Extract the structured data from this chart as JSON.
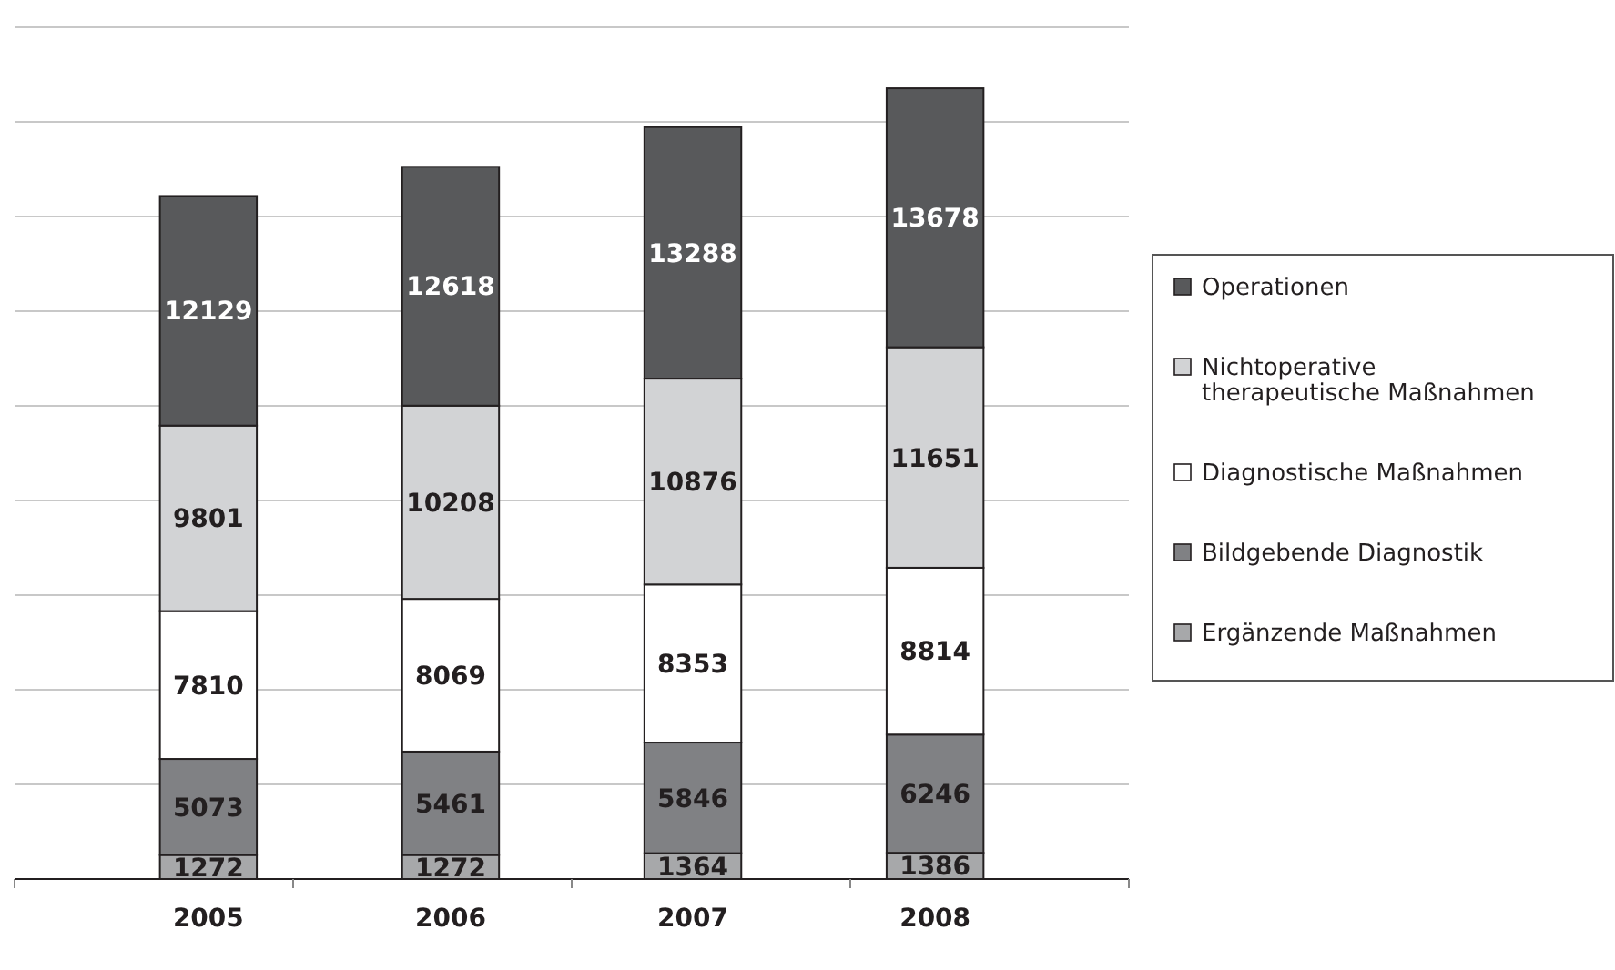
{
  "chart_data": {
    "type": "bar",
    "stacked": true,
    "categories": [
      "2005",
      "2006",
      "2007",
      "2008"
    ],
    "series": [
      {
        "name": "Ergänzende Maßnahmen",
        "color": "#a7a8aa",
        "values": [
          1272,
          1272,
          1364,
          1386
        ]
      },
      {
        "name": "Bildgebende Diagnostik",
        "color": "#808184",
        "values": [
          5073,
          5461,
          5846,
          6246
        ]
      },
      {
        "name": "Diagnostische Maßnahmen",
        "color": "#ffffff",
        "values": [
          7810,
          8069,
          8353,
          8814
        ]
      },
      {
        "name": "Nichtoperative therapeutische Maßnahmen",
        "color": "#d2d3d5",
        "values": [
          9801,
          10208,
          10876,
          11651
        ]
      },
      {
        "name": "Operationen",
        "color": "#58595b",
        "values": [
          12129,
          12618,
          13288,
          13678
        ]
      }
    ],
    "ylim": [
      0,
      45000
    ],
    "yticks": [
      {
        "value": 0,
        "label": null
      },
      {
        "value": 5000,
        "label": null
      },
      {
        "value": 10000,
        "label": null
      },
      {
        "value": 15000,
        "label": null
      },
      {
        "value": 20000,
        "label": null
      },
      {
        "value": 25000,
        "label": null
      },
      {
        "value": 30000,
        "label": null
      },
      {
        "value": 35000,
        "label": null
      },
      {
        "value": 40000,
        "label": null
      },
      {
        "value": 45000,
        "label": null
      }
    ],
    "tick_labels": "x",
    "grid": "y",
    "data_labels": true,
    "legend": "right"
  }
}
